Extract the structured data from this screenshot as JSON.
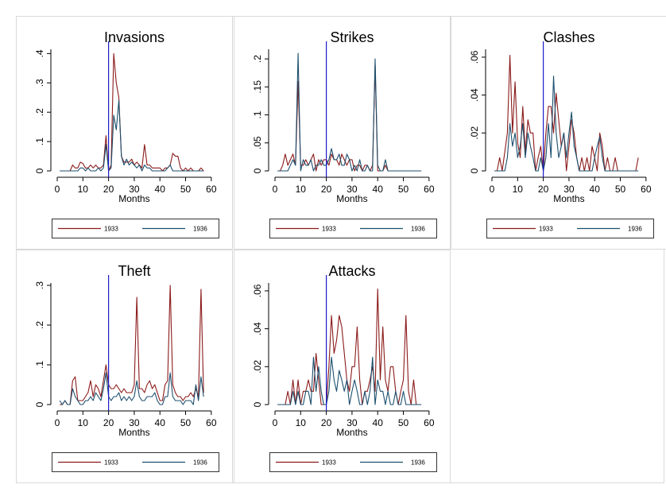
{
  "legend": {
    "a": "1933",
    "b": "1936"
  },
  "colors": {
    "a": "#8b1a1a",
    "b": "#1c4f6e",
    "vline": "#1a1acc"
  },
  "chart_data": [
    {
      "type": "line",
      "title": "Invasions",
      "xlabel": "Months",
      "xlim": [
        0,
        65
      ],
      "ylim": [
        0,
        0.42
      ],
      "xticks": [
        "0",
        "10",
        "20",
        "30",
        "40",
        "50",
        "60"
      ],
      "yticks": [
        ".4",
        ".3",
        ".2",
        ".1",
        "0"
      ],
      "ytick_values": [
        0.4,
        0.3,
        0.2,
        0.1,
        0
      ],
      "vline": 20,
      "x": [
        1,
        2,
        3,
        4,
        5,
        6,
        7,
        8,
        9,
        10,
        11,
        12,
        13,
        14,
        15,
        16,
        17,
        18,
        19,
        20,
        21,
        22,
        23,
        24,
        25,
        26,
        27,
        28,
        29,
        30,
        31,
        32,
        33,
        34,
        35,
        36,
        37,
        38,
        39,
        40,
        41,
        42,
        43,
        44,
        45,
        46,
        47,
        48,
        49,
        50,
        51,
        52,
        53,
        54,
        55,
        56,
        57
      ],
      "series": [
        {
          "name": "1933",
          "values": [
            0,
            0,
            0,
            0,
            0,
            0.02,
            0.01,
            0.01,
            0.03,
            0.025,
            0.01,
            0.01,
            0.02,
            0.01,
            0.02,
            0.01,
            0.01,
            0.02,
            0.12,
            0,
            0.02,
            0.4,
            0.3,
            0.25,
            0.05,
            0.03,
            0.03,
            0.03,
            0.04,
            0.02,
            0.03,
            0.02,
            0.01,
            0.09,
            0.02,
            0.02,
            0.01,
            0.01,
            0.01,
            0.01,
            0,
            0.01,
            0.01,
            0.02,
            0.06,
            0.05,
            0.05,
            0.01,
            0,
            0.01,
            0,
            0.01,
            0,
            0,
            0,
            0.01,
            0
          ]
        },
        {
          "name": "1936",
          "values": [
            0,
            0,
            0,
            0,
            0,
            0,
            0,
            0,
            0.01,
            0.01,
            0,
            0.01,
            0,
            0,
            0,
            0.01,
            0,
            0.01,
            0.09,
            0,
            0.01,
            0.19,
            0.14,
            0.24,
            0.05,
            0.02,
            0.04,
            0.02,
            0.03,
            0.02,
            0.01,
            0.02,
            0,
            0.02,
            0.01,
            0.01,
            0,
            0,
            0,
            0,
            0,
            0,
            0.01,
            0.02,
            0,
            0,
            0,
            0,
            0,
            0,
            0,
            0,
            0,
            0,
            0,
            0,
            0
          ]
        }
      ]
    },
    {
      "type": "line",
      "title": "Strikes",
      "xlabel": "Months",
      "xlim": [
        0,
        65
      ],
      "ylim": [
        0,
        0.22
      ],
      "xticks": [
        "0",
        "10",
        "20",
        "30",
        "40",
        "50",
        "60"
      ],
      "yticks": [
        ".2",
        ".15",
        ".1",
        ".05",
        "0"
      ],
      "ytick_values": [
        0.2,
        0.15,
        0.1,
        0.05,
        0
      ],
      "vline": 20,
      "x": [
        1,
        2,
        3,
        4,
        5,
        6,
        7,
        8,
        9,
        10,
        11,
        12,
        13,
        14,
        15,
        16,
        17,
        18,
        19,
        20,
        21,
        22,
        23,
        24,
        25,
        26,
        27,
        28,
        29,
        30,
        31,
        32,
        33,
        34,
        35,
        36,
        37,
        38,
        39,
        40,
        41,
        42,
        43,
        44,
        45,
        46,
        47,
        48,
        49,
        50,
        51,
        52,
        53,
        54,
        55,
        56,
        57
      ],
      "series": [
        {
          "name": "1933",
          "values": [
            0,
            0,
            0.01,
            0.03,
            0.01,
            0.02,
            0.03,
            0.01,
            0.16,
            0.01,
            0.01,
            0.02,
            0.01,
            0.02,
            0.03,
            0,
            0.02,
            0.01,
            0.02,
            0.02,
            0.01,
            0.03,
            0.02,
            0.02,
            0.01,
            0.03,
            0.02,
            0.01,
            0.02,
            0.02,
            0,
            0.01,
            0.01,
            0,
            0.01,
            0.01,
            0,
            0.01,
            0.19,
            0,
            0,
            0,
            0.01,
            0,
            0,
            0,
            0,
            0,
            0,
            0,
            0,
            0,
            0,
            0,
            0,
            0,
            0
          ]
        },
        {
          "name": "1936",
          "values": [
            0,
            0,
            0,
            0,
            0,
            0.01,
            0.02,
            0.01,
            0.21,
            0,
            0.02,
            0.01,
            0.01,
            0.02,
            0,
            0.01,
            0.01,
            0.02,
            0.01,
            0.01,
            0.02,
            0.04,
            0.02,
            0.02,
            0.03,
            0.01,
            0.01,
            0.03,
            0.02,
            0,
            0.01,
            0,
            0.02,
            0,
            0,
            0.01,
            0,
            0,
            0.2,
            0.01,
            0,
            0,
            0.02,
            0,
            0,
            0,
            0,
            0,
            0,
            0,
            0,
            0,
            0,
            0,
            0,
            0,
            0
          ]
        }
      ]
    },
    {
      "type": "line",
      "title": "Clashes",
      "xlabel": "Months",
      "xlim": [
        0,
        65
      ],
      "ylim": [
        0,
        0.065
      ],
      "xticks": [
        "0",
        "10",
        "20",
        "30",
        "40",
        "50",
        "60"
      ],
      "yticks": [
        ".06",
        ".04",
        ".02",
        "0"
      ],
      "ytick_values": [
        0.06,
        0.04,
        0.02,
        0
      ],
      "vline": 20,
      "x": [
        1,
        2,
        3,
        4,
        5,
        6,
        7,
        8,
        9,
        10,
        11,
        12,
        13,
        14,
        15,
        16,
        17,
        18,
        19,
        20,
        21,
        22,
        23,
        24,
        25,
        26,
        27,
        28,
        29,
        30,
        31,
        32,
        33,
        34,
        35,
        36,
        37,
        38,
        39,
        40,
        41,
        42,
        43,
        44,
        45,
        46,
        47,
        48,
        49,
        50,
        51,
        52,
        53,
        54,
        55,
        56,
        57
      ],
      "series": [
        {
          "name": "1933",
          "values": [
            0,
            0,
            0.007,
            0,
            0.01,
            0.02,
            0.061,
            0.02,
            0.047,
            0.015,
            0.007,
            0.034,
            0.01,
            0.027,
            0.02,
            0.02,
            0,
            0.007,
            0.013,
            0,
            0.02,
            0.034,
            0.034,
            0.02,
            0.041,
            0.027,
            0.013,
            0.02,
            0,
            0.013,
            0.027,
            0.02,
            0.007,
            0,
            0.007,
            0,
            0.007,
            0,
            0.013,
            0.007,
            0,
            0.02,
            0.013,
            0,
            0.007,
            0,
            0,
            0.007,
            0,
            0,
            0,
            0,
            0,
            0,
            0,
            0,
            0.007
          ]
        },
        {
          "name": "1936",
          "values": [
            0,
            0,
            0,
            0,
            0,
            0.007,
            0.025,
            0.013,
            0.02,
            0.007,
            0.013,
            0.025,
            0.007,
            0.02,
            0.013,
            0.007,
            0,
            0,
            0.007,
            0,
            0.007,
            0.025,
            0.007,
            0.05,
            0.02,
            0.007,
            0.013,
            0.02,
            0.007,
            0.02,
            0.031,
            0.013,
            0.007,
            0,
            0,
            0,
            0,
            0,
            0,
            0.007,
            0.013,
            0.018,
            0.007,
            0,
            0,
            0,
            0,
            0,
            0,
            0,
            0,
            0,
            0,
            0,
            0,
            0,
            0
          ]
        }
      ]
    },
    {
      "type": "line",
      "title": "Theft",
      "xlabel": "Months",
      "xlim": [
        0,
        65
      ],
      "ylim": [
        0,
        0.31
      ],
      "xticks": [
        "0",
        "10",
        "20",
        "30",
        "40",
        "50",
        "60"
      ],
      "yticks": [
        ".3",
        ".2",
        ".1",
        "0"
      ],
      "ytick_values": [
        0.3,
        0.2,
        0.1,
        0
      ],
      "vline": 20,
      "x": [
        1,
        2,
        3,
        4,
        5,
        6,
        7,
        8,
        9,
        10,
        11,
        12,
        13,
        14,
        15,
        16,
        17,
        18,
        19,
        20,
        21,
        22,
        23,
        24,
        25,
        26,
        27,
        28,
        29,
        30,
        31,
        32,
        33,
        34,
        35,
        36,
        37,
        38,
        39,
        40,
        41,
        42,
        43,
        44,
        45,
        46,
        47,
        48,
        49,
        50,
        51,
        52,
        53,
        54,
        55,
        56,
        57
      ],
      "series": [
        {
          "name": "1933",
          "values": [
            0,
            0,
            0.01,
            0,
            0,
            0.06,
            0.07,
            0.01,
            0.01,
            0.01,
            0.02,
            0.03,
            0.06,
            0.02,
            0.05,
            0.04,
            0.02,
            0.06,
            0.1,
            0.05,
            0.04,
            0.04,
            0.05,
            0.04,
            0.03,
            0.04,
            0.03,
            0.03,
            0.03,
            0.05,
            0.27,
            0.04,
            0.04,
            0.03,
            0.05,
            0.06,
            0.04,
            0.05,
            0.03,
            0.01,
            0.01,
            0.05,
            0.06,
            0.3,
            0.05,
            0.03,
            0.02,
            0.02,
            0.01,
            0.02,
            0.02,
            0.03,
            0.02,
            0.04,
            0.02,
            0.29,
            0.03
          ]
        },
        {
          "name": "1936",
          "values": [
            0.01,
            0,
            0.01,
            0,
            0,
            0.04,
            0.02,
            0.01,
            0,
            0,
            0.01,
            0.01,
            0.02,
            0.01,
            0.03,
            0.02,
            0.01,
            0.04,
            0.08,
            0.02,
            0.01,
            0.02,
            0.02,
            0.03,
            0.01,
            0.02,
            0.01,
            0.02,
            0.01,
            0.02,
            0.06,
            0.02,
            0.01,
            0.01,
            0.02,
            0.02,
            0.02,
            0.03,
            0.01,
            0,
            0,
            0.02,
            0.02,
            0.08,
            0.02,
            0.01,
            0.01,
            0.01,
            0,
            0.01,
            0.01,
            0.01,
            0,
            0.05,
            0.01,
            0.07,
            0.02
          ]
        }
      ]
    },
    {
      "type": "line",
      "title": "Attacks",
      "xlabel": "Months",
      "xlim": [
        0,
        65
      ],
      "ylim": [
        0,
        0.065
      ],
      "xticks": [
        "0",
        "10",
        "20",
        "30",
        "40",
        "50",
        "60"
      ],
      "yticks": [
        ".06",
        ".04",
        ".02",
        "0"
      ],
      "ytick_values": [
        0.06,
        0.04,
        0.02,
        0
      ],
      "vline": 20,
      "x": [
        1,
        2,
        3,
        4,
        5,
        6,
        7,
        8,
        9,
        10,
        11,
        12,
        13,
        14,
        15,
        16,
        17,
        18,
        19,
        20,
        21,
        22,
        23,
        24,
        25,
        26,
        27,
        28,
        29,
        30,
        31,
        32,
        33,
        34,
        35,
        36,
        37,
        38,
        39,
        40,
        41,
        42,
        43,
        44,
        45,
        46,
        47,
        48,
        49,
        50,
        51,
        52,
        53,
        54,
        55,
        56,
        57
      ],
      "series": [
        {
          "name": "1933",
          "values": [
            0,
            0,
            0,
            0,
            0.007,
            0,
            0.013,
            0,
            0.013,
            0,
            0.007,
            0.007,
            0.013,
            0.007,
            0.007,
            0.027,
            0.013,
            0,
            0,
            0,
            0.02,
            0.047,
            0.027,
            0.034,
            0.047,
            0.041,
            0.027,
            0.013,
            0.007,
            0.02,
            0.02,
            0.041,
            0.013,
            0,
            0.007,
            0.007,
            0.013,
            0.02,
            0.007,
            0.061,
            0.013,
            0.041,
            0.013,
            0.007,
            0.02,
            0.02,
            0.007,
            0,
            0.007,
            0.013,
            0.047,
            0.007,
            0,
            0.013,
            0,
            0,
            0
          ]
        },
        {
          "name": "1936",
          "values": [
            0,
            0,
            0,
            0,
            0,
            0,
            0.007,
            0,
            0.007,
            0,
            0,
            0.007,
            0.007,
            0,
            0.025,
            0.007,
            0.02,
            0.007,
            0,
            0,
            0.007,
            0.025,
            0.013,
            0.007,
            0.018,
            0.013,
            0.007,
            0.013,
            0,
            0.007,
            0.013,
            0.007,
            0,
            0,
            0.007,
            0,
            0.007,
            0.025,
            0,
            0.013,
            0.007,
            0.007,
            0,
            0.007,
            0,
            0,
            0.007,
            0,
            0,
            0.007,
            0,
            0,
            0,
            0,
            0,
            0,
            0
          ]
        }
      ]
    }
  ]
}
